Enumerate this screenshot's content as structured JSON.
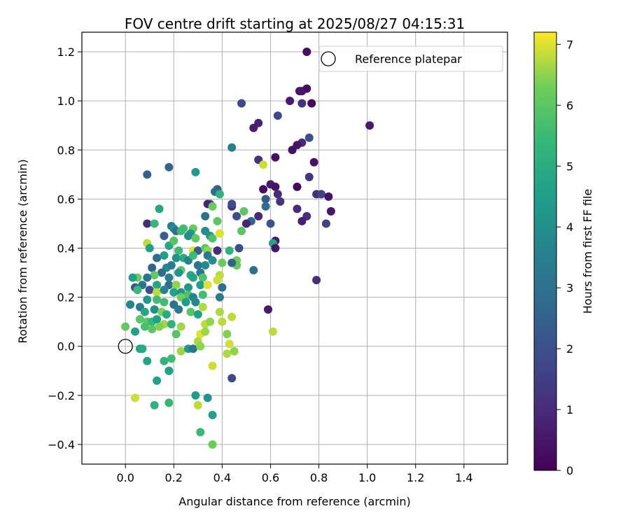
{
  "chart_data": {
    "type": "scatter",
    "title": "FOV centre drift starting at 2025/08/27 04:15:31",
    "xlabel": "Angular distance from reference (arcmin)",
    "ylabel": "Rotation from reference (arcmin)",
    "xlim": [
      -0.18,
      1.58
    ],
    "ylim": [
      -0.48,
      1.28
    ],
    "xticks": [
      0.0,
      0.2,
      0.4,
      0.6,
      0.8,
      1.0,
      1.2,
      1.4
    ],
    "xtick_labels": [
      "0.0",
      "0.2",
      "0.4",
      "0.6",
      "0.8",
      "1.0",
      "1.2",
      "1.4"
    ],
    "yticks": [
      -0.4,
      -0.2,
      0.0,
      0.2,
      0.4,
      0.6,
      0.8,
      1.0,
      1.2
    ],
    "ytick_labels": [
      "−0.4",
      "−0.2",
      "0.0",
      "0.2",
      "0.4",
      "0.6",
      "0.8",
      "1.0",
      "1.2"
    ],
    "grid": true,
    "legend": {
      "position": "top-right",
      "entries": [
        "Reference platepar"
      ]
    },
    "reference_point": {
      "x": 0.0,
      "y": 0.0,
      "label": "Reference platepar"
    },
    "colorbar": {
      "label": "Hours from first FF file",
      "min": 0,
      "max": 7.2,
      "ticks": [
        0,
        1,
        2,
        3,
        4,
        5,
        6,
        7
      ],
      "tick_labels": [
        "0",
        "1",
        "2",
        "3",
        "4",
        "5",
        "6",
        "7"
      ],
      "colormap": "viridis"
    },
    "points": [
      [
        0.75,
        1.2,
        0.3
      ],
      [
        0.73,
        1.04,
        0.4
      ],
      [
        0.75,
        1.05,
        0.3
      ],
      [
        0.72,
        1.04,
        0.5
      ],
      [
        0.48,
        0.99,
        1.8
      ],
      [
        0.68,
        1.0,
        0.6
      ],
      [
        0.73,
        0.99,
        1.2
      ],
      [
        0.77,
        0.99,
        0.2
      ],
      [
        1.01,
        0.9,
        0.6
      ],
      [
        0.55,
        0.91,
        0.8
      ],
      [
        0.53,
        0.89,
        0.7
      ],
      [
        0.63,
        0.94,
        1.8
      ],
      [
        0.76,
        0.85,
        2.0
      ],
      [
        0.73,
        0.83,
        0.9
      ],
      [
        0.71,
        0.82,
        0.5
      ],
      [
        0.69,
        0.8,
        0.4
      ],
      [
        0.44,
        0.81,
        3.5
      ],
      [
        0.62,
        0.77,
        0.3
      ],
      [
        0.55,
        0.76,
        1.2
      ],
      [
        0.57,
        0.74,
        6.9
      ],
      [
        0.78,
        0.75,
        0.4
      ],
      [
        0.18,
        0.73,
        2.6
      ],
      [
        0.09,
        0.7,
        2.4
      ],
      [
        0.29,
        0.71,
        4.4
      ],
      [
        0.76,
        0.69,
        1.3
      ],
      [
        0.6,
        0.66,
        0.6
      ],
      [
        0.57,
        0.64,
        0.3
      ],
      [
        0.62,
        0.65,
        0.4
      ],
      [
        0.71,
        0.65,
        0.2
      ],
      [
        0.63,
        0.62,
        1.0
      ],
      [
        0.79,
        0.62,
        1.1
      ],
      [
        0.81,
        0.62,
        1.6
      ],
      [
        0.84,
        0.61,
        0.4
      ],
      [
        0.38,
        0.64,
        2.4
      ],
      [
        0.37,
        0.63,
        3.0
      ],
      [
        0.39,
        0.62,
        5.2
      ],
      [
        0.58,
        0.6,
        2.3
      ],
      [
        0.64,
        0.59,
        1.2
      ],
      [
        0.35,
        0.58,
        2.4
      ],
      [
        0.34,
        0.58,
        0.8
      ],
      [
        0.44,
        0.57,
        1.0
      ],
      [
        0.44,
        0.58,
        2.0
      ],
      [
        0.36,
        0.57,
        6.2
      ],
      [
        0.58,
        0.57,
        2.8
      ],
      [
        0.71,
        0.56,
        1.0
      ],
      [
        0.85,
        0.55,
        0.5
      ],
      [
        0.49,
        0.55,
        6.0
      ],
      [
        0.46,
        0.53,
        2.0
      ],
      [
        0.55,
        0.53,
        0.9
      ],
      [
        0.75,
        0.53,
        1.1
      ],
      [
        0.33,
        0.53,
        3.0
      ],
      [
        0.38,
        0.51,
        6.0
      ],
      [
        0.52,
        0.51,
        2.6
      ],
      [
        0.73,
        0.51,
        0.7
      ],
      [
        0.5,
        0.5,
        0.8
      ],
      [
        0.6,
        0.5,
        2.1
      ],
      [
        0.83,
        0.5,
        1.6
      ],
      [
        0.09,
        0.5,
        1.0
      ],
      [
        0.12,
        0.5,
        5.4
      ],
      [
        0.19,
        0.49,
        3.5
      ],
      [
        0.2,
        0.48,
        4.0
      ],
      [
        0.24,
        0.48,
        5.6
      ],
      [
        0.28,
        0.48,
        6.2
      ],
      [
        0.14,
        0.56,
        4.8
      ],
      [
        0.21,
        0.47,
        3.0
      ],
      [
        0.23,
        0.47,
        5.5
      ],
      [
        0.27,
        0.46,
        4.4
      ],
      [
        0.33,
        0.47,
        4.0
      ],
      [
        0.35,
        0.45,
        4.2
      ],
      [
        0.39,
        0.46,
        7.0
      ],
      [
        0.48,
        0.47,
        6.0
      ],
      [
        0.16,
        0.45,
        2.5
      ],
      [
        0.26,
        0.45,
        4.0
      ],
      [
        0.29,
        0.44,
        6.1
      ],
      [
        0.36,
        0.44,
        5.8
      ],
      [
        0.62,
        0.43,
        0.6
      ],
      [
        0.61,
        0.42,
        4.7
      ],
      [
        0.09,
        0.42,
        6.8
      ],
      [
        0.1,
        0.4,
        4.5
      ],
      [
        0.18,
        0.41,
        4.8
      ],
      [
        0.2,
        0.43,
        5.9
      ],
      [
        0.22,
        0.39,
        5.5
      ],
      [
        0.28,
        0.39,
        7.0
      ],
      [
        0.3,
        0.39,
        2.4
      ],
      [
        0.33,
        0.4,
        6.0
      ],
      [
        0.34,
        0.39,
        6.5
      ],
      [
        0.38,
        0.39,
        1.0
      ],
      [
        0.47,
        0.4,
        2.0
      ],
      [
        0.62,
        0.4,
        0.5
      ],
      [
        0.43,
        0.39,
        5.2
      ],
      [
        0.13,
        0.36,
        2.9
      ],
      [
        0.16,
        0.37,
        4.5
      ],
      [
        0.21,
        0.36,
        4.1
      ],
      [
        0.24,
        0.36,
        4.9
      ],
      [
        0.26,
        0.35,
        3.6
      ],
      [
        0.28,
        0.37,
        5.5
      ],
      [
        0.34,
        0.37,
        3.3
      ],
      [
        0.36,
        0.35,
        4.0
      ],
      [
        0.4,
        0.34,
        6.2
      ],
      [
        0.46,
        0.35,
        6.3
      ],
      [
        0.46,
        0.33,
        6.1
      ],
      [
        0.11,
        0.32,
        2.6
      ],
      [
        0.17,
        0.32,
        3.8
      ],
      [
        0.19,
        0.33,
        3.4
      ],
      [
        0.23,
        0.31,
        6.0
      ],
      [
        0.3,
        0.33,
        3.1
      ],
      [
        0.33,
        0.33,
        3.9
      ],
      [
        0.44,
        0.34,
        2.5
      ],
      [
        0.53,
        0.31,
        3.0
      ],
      [
        0.15,
        0.3,
        2.8
      ],
      [
        0.22,
        0.3,
        4.2
      ],
      [
        0.27,
        0.29,
        4.9
      ],
      [
        0.31,
        0.3,
        3.2
      ],
      [
        0.12,
        0.29,
        6.1
      ],
      [
        0.05,
        0.28,
        6.2
      ],
      [
        0.09,
        0.28,
        3.2
      ],
      [
        0.18,
        0.28,
        3.5
      ],
      [
        0.28,
        0.28,
        4.7
      ],
      [
        0.32,
        0.28,
        5.8
      ],
      [
        0.39,
        0.29,
        6.8
      ],
      [
        0.38,
        0.27,
        6.9
      ],
      [
        0.03,
        0.28,
        4.5
      ],
      [
        0.04,
        0.24,
        2.2
      ],
      [
        0.07,
        0.25,
        3.1
      ],
      [
        0.13,
        0.25,
        4.8
      ],
      [
        0.18,
        0.25,
        2.9
      ],
      [
        0.21,
        0.25,
        6.5
      ],
      [
        0.26,
        0.24,
        4.3
      ],
      [
        0.31,
        0.25,
        4.5
      ],
      [
        0.34,
        0.25,
        7.0
      ],
      [
        0.4,
        0.24,
        3.0
      ],
      [
        0.05,
        0.23,
        5.5
      ],
      [
        0.1,
        0.23,
        2.0
      ],
      [
        0.13,
        0.22,
        6.8
      ],
      [
        0.16,
        0.23,
        3.7
      ],
      [
        0.2,
        0.22,
        4.6
      ],
      [
        0.23,
        0.22,
        4.2
      ],
      [
        0.26,
        0.21,
        5.8
      ],
      [
        0.28,
        0.2,
        3.6
      ],
      [
        0.32,
        0.21,
        5.6
      ],
      [
        0.39,
        0.2,
        3.4
      ],
      [
        0.09,
        0.19,
        4.3
      ],
      [
        0.13,
        0.19,
        5.6
      ],
      [
        0.16,
        0.18,
        5.6
      ],
      [
        0.2,
        0.17,
        3.1
      ],
      [
        0.23,
        0.2,
        6.3
      ],
      [
        0.25,
        0.18,
        4.5
      ],
      [
        0.29,
        0.18,
        3.8
      ],
      [
        0.32,
        0.16,
        6.7
      ],
      [
        0.02,
        0.17,
        3.7
      ],
      [
        0.06,
        0.16,
        3.5
      ],
      [
        0.08,
        0.14,
        4.8
      ],
      [
        0.12,
        0.15,
        4.0
      ],
      [
        0.15,
        0.14,
        6.4
      ],
      [
        0.17,
        0.13,
        5.0
      ],
      [
        0.22,
        0.15,
        3.3
      ],
      [
        0.27,
        0.14,
        5.9
      ],
      [
        0.3,
        0.13,
        4.6
      ],
      [
        0.39,
        0.14,
        6.7
      ],
      [
        0.59,
        0.15,
        0.6
      ],
      [
        0.06,
        0.11,
        6.0
      ],
      [
        0.09,
        0.1,
        6.0
      ],
      [
        0.11,
        0.1,
        5.4
      ],
      [
        0.13,
        0.11,
        4.6
      ],
      [
        0.16,
        0.09,
        6.6
      ],
      [
        0.19,
        0.09,
        5.2
      ],
      [
        0.23,
        0.08,
        6.6
      ],
      [
        0.33,
        0.09,
        6.8
      ],
      [
        0.35,
        0.1,
        6.5
      ],
      [
        0.4,
        0.1,
        6.8
      ],
      [
        0.44,
        0.12,
        6.8
      ],
      [
        0.0,
        0.08,
        6.1
      ],
      [
        0.04,
        0.06,
        4.6
      ],
      [
        0.08,
        0.08,
        5.7
      ],
      [
        0.11,
        0.07,
        6.0
      ],
      [
        0.14,
        0.08,
        6.4
      ],
      [
        0.21,
        0.05,
        5.9
      ],
      [
        0.31,
        0.05,
        7.0
      ],
      [
        0.33,
        0.06,
        6.6
      ],
      [
        0.42,
        0.05,
        6.4
      ],
      [
        0.61,
        0.06,
        6.8
      ],
      [
        0.3,
        0.02,
        6.7
      ],
      [
        0.43,
        0.01,
        6.9
      ],
      [
        0.23,
        -0.02,
        6.6
      ],
      [
        0.26,
        -0.01,
        4.4
      ],
      [
        0.28,
        -0.01,
        3.2
      ],
      [
        0.31,
        0.0,
        6.5
      ],
      [
        0.42,
        -0.03,
        6.7
      ],
      [
        0.45,
        -0.02,
        6.5
      ],
      [
        0.06,
        -0.01,
        4.6
      ],
      [
        0.07,
        -0.01,
        4.9
      ],
      [
        0.09,
        -0.06,
        4.7
      ],
      [
        0.16,
        -0.06,
        5.2
      ],
      [
        0.19,
        -0.05,
        5.6
      ],
      [
        0.18,
        -0.1,
        4.9
      ],
      [
        0.18,
        -0.1,
        4.6
      ],
      [
        0.36,
        -0.08,
        6.9
      ],
      [
        0.44,
        -0.13,
        1.8
      ],
      [
        0.13,
        -0.14,
        4.6
      ],
      [
        0.04,
        -0.21,
        6.9
      ],
      [
        0.12,
        -0.24,
        5.2
      ],
      [
        0.18,
        -0.23,
        5.4
      ],
      [
        0.29,
        -0.2,
        4.5
      ],
      [
        0.3,
        -0.24,
        6.8
      ],
      [
        0.34,
        -0.21,
        4.2
      ],
      [
        0.36,
        -0.28,
        4.6
      ],
      [
        0.31,
        -0.35,
        5.5
      ],
      [
        0.36,
        -0.4,
        6.2
      ],
      [
        0.79,
        0.27,
        1.1
      ]
    ]
  }
}
